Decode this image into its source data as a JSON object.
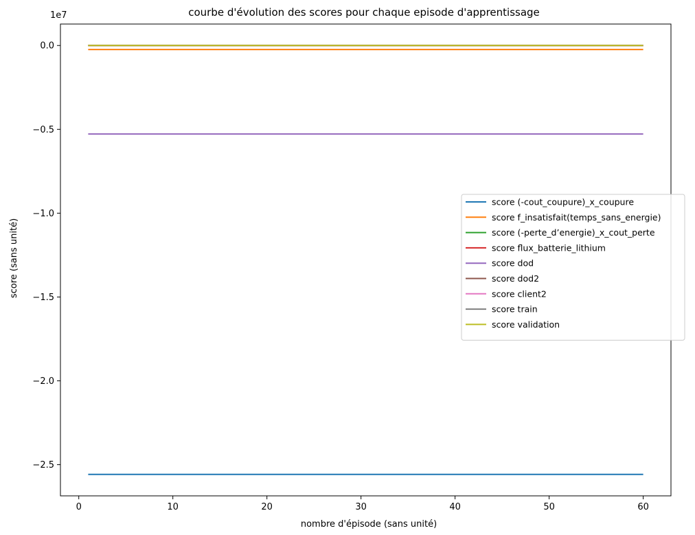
{
  "chart_data": {
    "type": "line",
    "title": "courbe d'évolution des scores pour chaque episode d'apprentissage",
    "xlabel": "nombre d'épisode (sans unité)",
    "ylabel": "score (sans unité)",
    "y_offset_label": "1e7",
    "xlim": [
      -1.95,
      62.95
    ],
    "ylim": [
      -26.86,
      1.28
    ],
    "y_scale_factor": 10000000,
    "x_ticks": [
      0,
      10,
      20,
      30,
      40,
      50,
      60
    ],
    "x_tick_labels": [
      "0",
      "10",
      "20",
      "30",
      "40",
      "50",
      "60"
    ],
    "y_ticks": [
      0,
      -5,
      -10,
      -15,
      -20,
      -25
    ],
    "y_tick_labels": [
      "0.0",
      "−0.5",
      "−1.0",
      "−1.5",
      "−2.0",
      "−2.5"
    ],
    "x": [
      1,
      60
    ],
    "grid": false,
    "legend_position": "center-right",
    "series": [
      {
        "name": "score (-cout_coupure)_x_coupure",
        "color": "#1f77b4",
        "values": [
          -25.58,
          -25.58
        ]
      },
      {
        "name": "score f_insatisfait(temps_sans_energie)",
        "color": "#ff7f0e",
        "values": [
          -0.24,
          -0.24
        ]
      },
      {
        "name": "score (-perte_d’energie)_x_cout_perte",
        "color": "#2ca02c",
        "values": [
          0.0,
          0.0
        ]
      },
      {
        "name": "score flux_batterie_lithium",
        "color": "#d62728",
        "values": [
          0.0,
          0.0
        ]
      },
      {
        "name": "score dod",
        "color": "#9467bd",
        "values": [
          -5.28,
          -5.28
        ]
      },
      {
        "name": "score dod2",
        "color": "#8c564b",
        "values": [
          0.0,
          0.0
        ]
      },
      {
        "name": "score client2",
        "color": "#e377c2",
        "values": [
          0.0,
          0.0
        ]
      },
      {
        "name": "score train",
        "color": "#7f7f7f",
        "values": [
          0.0,
          0.0
        ]
      },
      {
        "name": "score validation",
        "color": "#bcbd22",
        "values": [
          0.0,
          0.0
        ]
      }
    ]
  }
}
